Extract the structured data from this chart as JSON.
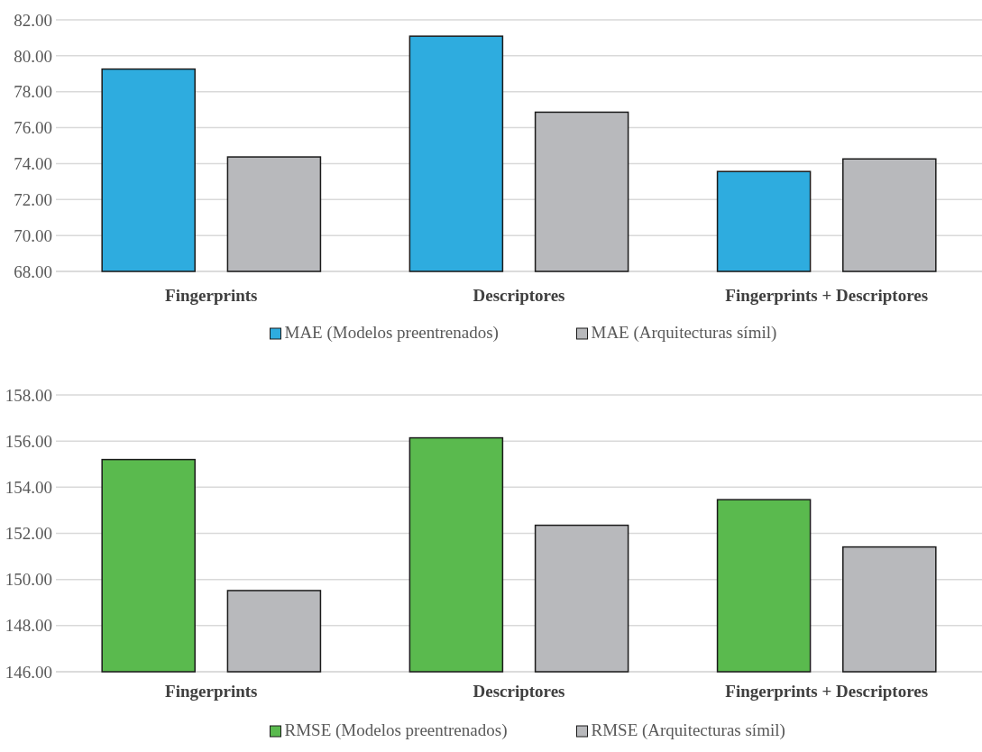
{
  "chart_data": [
    {
      "type": "bar",
      "categories": [
        "Fingerprints",
        "Descriptores",
        "Fingerprints + Descriptores"
      ],
      "series": [
        {
          "name": "MAE (Modelos preentrenados)",
          "color": "#2eacdf",
          "values": [
            79.26,
            81.09,
            73.56
          ]
        },
        {
          "name": "MAE (Arquitecturas símil)",
          "color": "#b8b9bc",
          "values": [
            74.37,
            76.86,
            74.26
          ]
        }
      ],
      "ylim": [
        68,
        82
      ],
      "yticks": [
        {
          "value": 68,
          "label": "68.00"
        },
        {
          "value": 70,
          "label": "70.00"
        },
        {
          "value": 72,
          "label": "72.00"
        },
        {
          "value": 74,
          "label": "74.00"
        },
        {
          "value": 76,
          "label": "76.00"
        },
        {
          "value": 78,
          "label": "78.00"
        },
        {
          "value": 80,
          "label": "80.00"
        },
        {
          "value": 82,
          "label": "82.00"
        }
      ],
      "grid": "y",
      "legend": "bottom"
    },
    {
      "type": "bar",
      "categories": [
        "Fingerprints",
        "Descriptores",
        "Fingerprints + Descriptores"
      ],
      "series": [
        {
          "name": "RMSE (Modelos preentrenados)",
          "color": "#5aba4e",
          "values": [
            155.2,
            156.14,
            153.46
          ]
        },
        {
          "name": "RMSE (Arquitecturas símil)",
          "color": "#b8b9bc",
          "values": [
            149.52,
            152.35,
            151.41
          ]
        }
      ],
      "ylim": [
        146,
        158
      ],
      "yticks": [
        {
          "value": 146,
          "label": "146.00"
        },
        {
          "value": 148,
          "label": "148.00"
        },
        {
          "value": 150,
          "label": "150.00"
        },
        {
          "value": 152,
          "label": "152.00"
        },
        {
          "value": 154,
          "label": "154.00"
        },
        {
          "value": 156,
          "label": "156.00"
        },
        {
          "value": 158,
          "label": "158.00"
        }
      ],
      "grid": "y",
      "legend": "bottom"
    }
  ]
}
